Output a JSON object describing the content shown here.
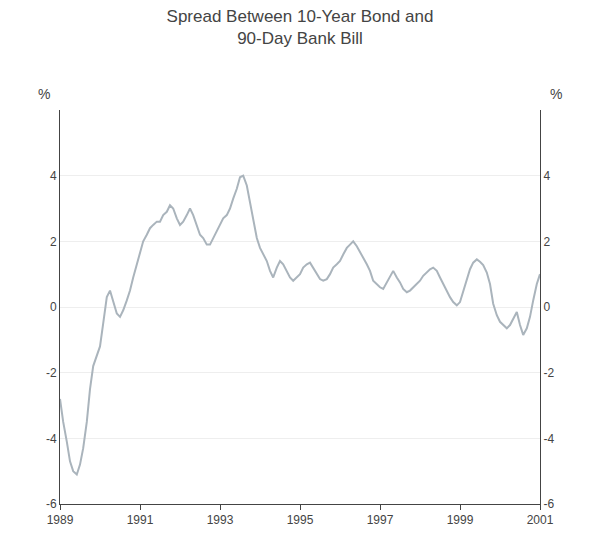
{
  "chart_data": {
    "type": "line",
    "title": "Spread Between 10-Year Bond and\n90-Day Bank Bill",
    "ylabel": "%",
    "y2label": "%",
    "color": "#aab4bc",
    "grid": true,
    "xlim": [
      1989.0,
      2001.0
    ],
    "xticks": [
      1989,
      1991,
      1993,
      1995,
      1997,
      1999,
      2001
    ],
    "ylim": [
      -6,
      6
    ],
    "yticks": [
      -6,
      -4,
      -2,
      0,
      2,
      4
    ],
    "y2lim": [
      -6,
      6
    ],
    "y2ticks": [
      -6,
      -4,
      -2,
      0,
      2,
      4
    ],
    "x": [
      1989.0,
      1989.08,
      1989.17,
      1989.25,
      1989.33,
      1989.42,
      1989.5,
      1989.58,
      1989.67,
      1989.75,
      1989.83,
      1989.92,
      1990.0,
      1990.08,
      1990.17,
      1990.25,
      1990.33,
      1990.42,
      1990.5,
      1990.58,
      1990.67,
      1990.75,
      1990.83,
      1990.92,
      1991.0,
      1991.08,
      1991.17,
      1991.25,
      1991.33,
      1991.42,
      1991.5,
      1991.58,
      1991.67,
      1991.75,
      1991.83,
      1991.92,
      1992.0,
      1992.08,
      1992.17,
      1992.25,
      1992.33,
      1992.42,
      1992.5,
      1992.58,
      1992.67,
      1992.75,
      1992.83,
      1992.92,
      1993.0,
      1993.08,
      1993.17,
      1993.25,
      1993.33,
      1993.42,
      1993.5,
      1993.58,
      1993.67,
      1993.75,
      1993.83,
      1993.92,
      1994.0,
      1994.08,
      1994.17,
      1994.25,
      1994.33,
      1994.42,
      1994.5,
      1994.58,
      1994.67,
      1994.75,
      1994.83,
      1994.92,
      1995.0,
      1995.08,
      1995.17,
      1995.25,
      1995.33,
      1995.42,
      1995.5,
      1995.58,
      1995.67,
      1995.75,
      1995.83,
      1995.92,
      1996.0,
      1996.08,
      1996.17,
      1996.25,
      1996.33,
      1996.42,
      1996.5,
      1996.58,
      1996.67,
      1996.75,
      1996.83,
      1996.92,
      1997.0,
      1997.08,
      1997.17,
      1997.25,
      1997.33,
      1997.42,
      1997.5,
      1997.58,
      1997.67,
      1997.75,
      1997.83,
      1997.92,
      1998.0,
      1998.08,
      1998.17,
      1998.25,
      1998.33,
      1998.42,
      1998.5,
      1998.58,
      1998.67,
      1998.75,
      1998.83,
      1998.92,
      1999.0,
      1999.08,
      1999.17,
      1999.25,
      1999.33,
      1999.42,
      1999.5,
      1999.58,
      1999.67,
      1999.75,
      1999.83,
      1999.92,
      2000.0,
      2000.08,
      2000.17,
      2000.25,
      2000.33,
      2000.42,
      2000.5,
      2000.58,
      2000.67,
      2000.75,
      2000.83,
      2000.92,
      2001.0
    ],
    "values": [
      -2.8,
      -3.5,
      -4.1,
      -4.7,
      -5.0,
      -5.1,
      -4.8,
      -4.3,
      -3.5,
      -2.5,
      -1.8,
      -1.5,
      -1.2,
      -0.5,
      0.3,
      0.5,
      0.2,
      -0.2,
      -0.3,
      -0.1,
      0.2,
      0.5,
      0.9,
      1.3,
      1.6,
      2.0,
      2.2,
      2.4,
      2.5,
      2.6,
      2.6,
      2.8,
      2.9,
      3.1,
      3.0,
      2.7,
      2.5,
      2.6,
      2.8,
      3.0,
      2.8,
      2.5,
      2.2,
      2.1,
      1.9,
      1.9,
      2.1,
      2.3,
      2.5,
      2.7,
      2.8,
      3.0,
      3.3,
      3.6,
      3.95,
      4.0,
      3.7,
      3.2,
      2.6,
      2.1,
      1.8,
      1.6,
      1.4,
      1.1,
      0.9,
      1.2,
      1.4,
      1.3,
      1.1,
      0.9,
      0.8,
      0.9,
      1.0,
      1.2,
      1.3,
      1.35,
      1.2,
      1.0,
      0.85,
      0.8,
      0.85,
      1.0,
      1.2,
      1.3,
      1.4,
      1.6,
      1.8,
      1.9,
      2.0,
      1.85,
      1.65,
      1.5,
      1.3,
      1.1,
      0.8,
      0.7,
      0.6,
      0.55,
      0.75,
      0.9,
      1.1,
      0.9,
      0.75,
      0.55,
      0.45,
      0.5,
      0.6,
      0.7,
      0.8,
      0.95,
      1.05,
      1.15,
      1.2,
      1.1,
      0.9,
      0.7,
      0.5,
      0.3,
      0.15,
      0.05,
      0.15,
      0.45,
      0.85,
      1.15,
      1.35,
      1.45,
      1.38,
      1.28,
      1.05,
      0.7,
      0.1,
      -0.25,
      -0.45,
      -0.55,
      -0.65,
      -0.55,
      -0.35,
      -0.15,
      -0.55,
      -0.85,
      -0.65,
      -0.3,
      0.2,
      0.7,
      1.0
    ]
  }
}
